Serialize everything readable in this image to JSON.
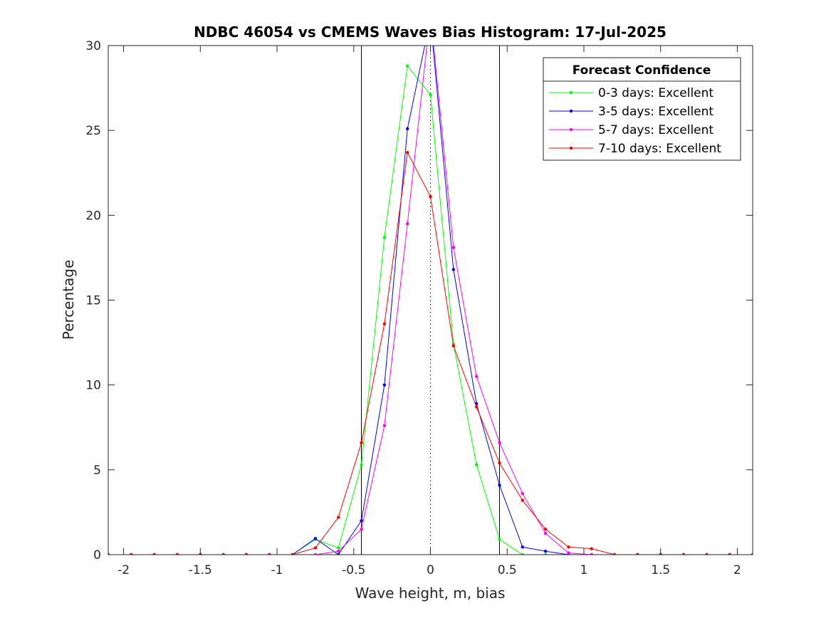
{
  "chart_data": {
    "type": "line",
    "title": "NDBC 46054 vs CMEMS Waves Bias Histogram: 17-Jul-2025",
    "xlabel": "Wave height, m, bias",
    "ylabel": "Percentage",
    "xlim": [
      -2.1,
      2.1
    ],
    "ylim": [
      0,
      30
    ],
    "xticks": [
      -2,
      -1.5,
      -1,
      -0.5,
      0,
      0.5,
      1,
      1.5,
      2
    ],
    "xtick_labels": [
      "-2",
      "-1.5",
      "-1",
      "-0.5",
      "0",
      "0.5",
      "1",
      "1.5",
      "2"
    ],
    "yticks": [
      0,
      5,
      10,
      15,
      20,
      25,
      30
    ],
    "ytick_labels": [
      "0",
      "5",
      "10",
      "15",
      "20",
      "25",
      "30"
    ],
    "grid": false,
    "reference_lines": {
      "solid_x": [
        -0.45,
        0.45
      ],
      "dotted_x": [
        0
      ]
    },
    "legend": {
      "title": "Forecast Confidence",
      "position": "top-right"
    },
    "x": [
      -2.1,
      -1.95,
      -1.8,
      -1.65,
      -1.5,
      -1.35,
      -1.2,
      -1.05,
      -0.9,
      -0.75,
      -0.6,
      -0.45,
      -0.3,
      -0.15,
      0,
      0.15,
      0.3,
      0.45,
      0.6,
      0.75,
      0.9,
      1.05,
      1.2,
      1.35,
      1.5,
      1.65,
      1.8,
      1.95,
      2.1
    ],
    "series": [
      {
        "name": "0-3 days: Excellent",
        "color": "#00ff00",
        "values": [
          0,
          0,
          0,
          0,
          0,
          0,
          0,
          0,
          0,
          0.9,
          0.4,
          5.3,
          18.7,
          28.8,
          27.1,
          12.4,
          5.3,
          0.9,
          0,
          0,
          0,
          0,
          0,
          0,
          0,
          0,
          0,
          0,
          0
        ]
      },
      {
        "name": "3-5 days: Excellent",
        "color": "#0000ff",
        "values": [
          0,
          0,
          0,
          0,
          0,
          0,
          0,
          0,
          0,
          0.95,
          0,
          2.0,
          10.0,
          25.1,
          31.6,
          16.8,
          8.9,
          4.1,
          0.45,
          0.2,
          0,
          0,
          0,
          0,
          0,
          0,
          0,
          0,
          0
        ]
      },
      {
        "name": "5-7 days: Excellent",
        "color": "#ff00ff",
        "values": [
          0,
          0,
          0,
          0,
          0,
          0,
          0,
          0,
          0,
          0,
          0.2,
          1.5,
          7.6,
          19.5,
          31.9,
          18.1,
          10.5,
          6.6,
          3.6,
          1.25,
          0.1,
          0,
          0,
          0,
          0,
          0,
          0,
          0,
          0
        ]
      },
      {
        "name": "7-10 days: Excellent",
        "color": "#ff0000",
        "values": [
          0,
          0,
          0,
          0,
          0,
          0,
          0,
          0,
          0,
          0.4,
          2.2,
          6.6,
          13.6,
          23.7,
          21.1,
          12.3,
          8.7,
          5.4,
          3.2,
          1.5,
          0.45,
          0.35,
          0,
          0,
          0,
          0,
          0,
          0,
          0
        ]
      }
    ]
  }
}
